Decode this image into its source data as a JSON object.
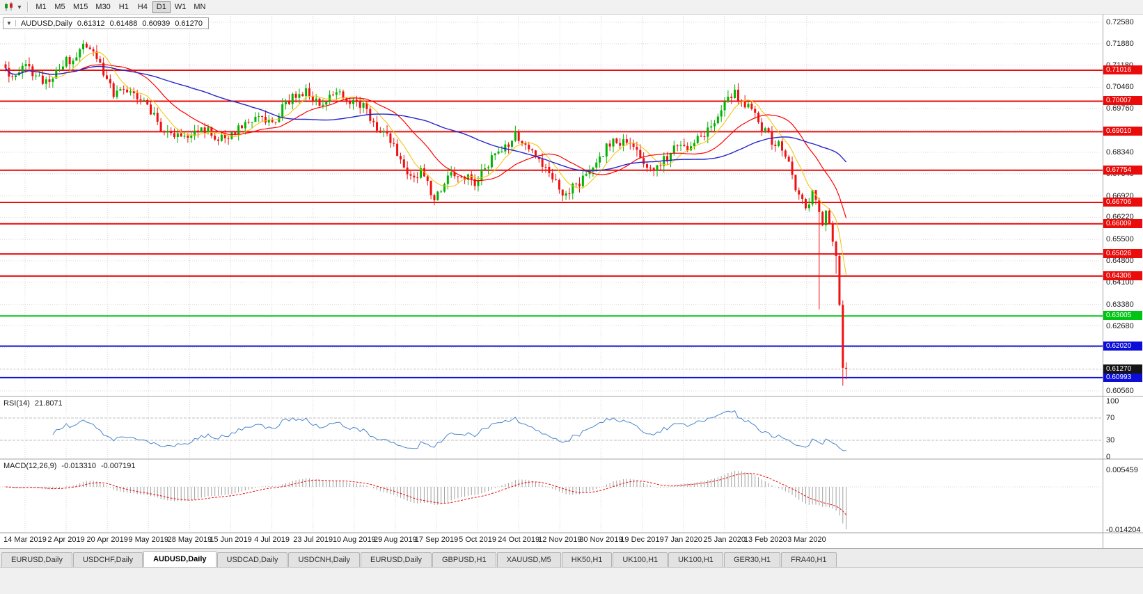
{
  "toolbar": {
    "chart_type_icon": "candlestick-chart-icon",
    "dropdown_glyph": "▼",
    "timeframes": [
      "M1",
      "M5",
      "M15",
      "M30",
      "H1",
      "H4",
      "D1",
      "W1",
      "MN"
    ],
    "active_timeframe": "D1"
  },
  "chart_header": {
    "collapse_glyph": "▼",
    "symbol": "AUDUSD,Daily",
    "open": "0.61312",
    "high": "0.61488",
    "low": "0.60939",
    "close": "0.61270"
  },
  "chart_data": {
    "type": "candlestick",
    "symbol": "AUDUSD",
    "timeframe": "Daily",
    "bars": 250,
    "current_bar": {
      "open": 0.61312,
      "high": 0.61488,
      "low": 0.60939,
      "close": 0.6127
    },
    "current_price": 0.6127,
    "y_axis": {
      "ticks": [
        "0.72580",
        "0.71880",
        "0.71180",
        "0.70460",
        "0.69760",
        "0.69060",
        "0.68340",
        "0.67640",
        "0.66920",
        "0.66220",
        "0.65500",
        "0.64800",
        "0.64100",
        "0.63380",
        "0.62680",
        "0.61980",
        "0.61270",
        "0.60560"
      ],
      "top_price": 0.72852,
      "bottom_price": 0.6038
    },
    "x_labels": [
      "14 Mar 2019",
      "2 Apr 2019",
      "20 Apr 2019",
      "9 May 2019",
      "28 May 2019",
      "15 Jun 2019",
      "4 Jul 2019",
      "23 Jul 2019",
      "10 Aug 2019",
      "29 Aug 2019",
      "17 Sep 2019",
      "5 Oct 2019",
      "24 Oct 2019",
      "12 Nov 2019",
      "30 Nov 2019",
      "19 Dec 2019",
      "7 Jan 2020",
      "25 Jan 2020",
      "13 Feb 2020",
      "3 Mar 2020"
    ],
    "levels": [
      {
        "price": 0.71016,
        "label": "0.71016",
        "color": "#ea0b0b"
      },
      {
        "price": 0.70007,
        "label": "0.70007",
        "color": "#ea0b0b"
      },
      {
        "price": 0.6901,
        "label": "0.69010",
        "color": "#ea0b0b"
      },
      {
        "price": 0.67754,
        "label": "0.67754",
        "color": "#ea0b0b"
      },
      {
        "price": 0.66706,
        "label": "0.66706",
        "color": "#ea0b0b"
      },
      {
        "price": 0.66009,
        "label": "0.66009",
        "color": "#ea0b0b"
      },
      {
        "price": 0.65026,
        "label": "0.65026",
        "color": "#ea0b0b"
      },
      {
        "price": 0.64306,
        "label": "0.64306",
        "color": "#ea0b0b"
      },
      {
        "price": 0.63005,
        "label": "0.63005",
        "color": "#00c414"
      },
      {
        "price": 0.6202,
        "label": "0.62020",
        "color": "#0d0dd8"
      },
      {
        "price": 0.60993,
        "label": "0.60993",
        "color": "#0d0dd8"
      }
    ],
    "price_path_anchors": [
      [
        0,
        0.7092
      ],
      [
        6,
        0.7106
      ],
      [
        12,
        0.7066
      ],
      [
        18,
        0.7128
      ],
      [
        24,
        0.718
      ],
      [
        27,
        0.7148
      ],
      [
        32,
        0.7018
      ],
      [
        36,
        0.7046
      ],
      [
        41,
        0.6996
      ],
      [
        47,
        0.6902
      ],
      [
        53,
        0.6874
      ],
      [
        58,
        0.6926
      ],
      [
        63,
        0.687
      ],
      [
        69,
        0.6912
      ],
      [
        74,
        0.695
      ],
      [
        79,
        0.6938
      ],
      [
        85,
        0.701
      ],
      [
        89,
        0.704
      ],
      [
        93,
        0.6978
      ],
      [
        97,
        0.702
      ],
      [
        101,
        0.7012
      ],
      [
        106,
        0.6984
      ],
      [
        110,
        0.6922
      ],
      [
        114,
        0.6868
      ],
      [
        118,
        0.6794
      ],
      [
        121,
        0.675
      ],
      [
        124,
        0.6772
      ],
      [
        127,
        0.668
      ],
      [
        131,
        0.6756
      ],
      [
        135,
        0.6772
      ],
      [
        139,
        0.6728
      ],
      [
        143,
        0.6796
      ],
      [
        147,
        0.685
      ],
      [
        151,
        0.6886
      ],
      [
        155,
        0.686
      ],
      [
        159,
        0.6798
      ],
      [
        163,
        0.6744
      ],
      [
        166,
        0.6694
      ],
      [
        169,
        0.6728
      ],
      [
        173,
        0.678
      ],
      [
        177,
        0.6836
      ],
      [
        181,
        0.6876
      ],
      [
        185,
        0.6856
      ],
      [
        189,
        0.6802
      ],
      [
        193,
        0.6778
      ],
      [
        197,
        0.6836
      ],
      [
        201,
        0.685
      ],
      [
        205,
        0.6876
      ],
      [
        209,
        0.6926
      ],
      [
        213,
        0.699
      ],
      [
        216,
        0.703
      ],
      [
        219,
        0.6996
      ],
      [
        222,
        0.6946
      ],
      [
        225,
        0.6896
      ],
      [
        228,
        0.6864
      ],
      [
        231,
        0.6832
      ],
      [
        233,
        0.6762
      ],
      [
        235,
        0.6688
      ],
      [
        237,
        0.666
      ],
      [
        239,
        0.67
      ],
      [
        240,
        0.6662
      ],
      [
        241,
        0.663
      ],
      [
        242,
        0.6592
      ],
      [
        243,
        0.6634
      ],
      [
        244,
        0.6586
      ],
      [
        245,
        0.655
      ],
      [
        246,
        0.648
      ],
      [
        247,
        0.634
      ],
      [
        248,
        0.6131
      ],
      [
        249,
        0.6127
      ]
    ],
    "low_wick_overrides": [
      [
        241,
        0.6322
      ],
      [
        246,
        0.6438
      ],
      [
        248,
        0.6073
      ]
    ],
    "colors": {
      "up": "#00b400",
      "down": "#ef1010",
      "ma_fast": "#f2c200",
      "ma_mid": "#ff0000",
      "ma_slow": "#2424cc",
      "grid": "#d8d8d8",
      "current_badge": "#141414",
      "separator": "#a3a3a3"
    }
  },
  "rsi_panel": {
    "label": "RSI(14)",
    "value": "21.8071",
    "ticks": [
      "100",
      "70",
      "30",
      "0"
    ],
    "upper_level": 70,
    "lower_level": 30,
    "line_color": "#4a86c8"
  },
  "macd_panel": {
    "label": "MACD(12,26,9)",
    "main_value": "-0.013310",
    "signal_value": "-0.007191",
    "ticks": [
      "0.005459",
      "-0.014204"
    ],
    "histogram_color": "#a0a0a0",
    "signal_color": "#ea0b0b"
  },
  "tabs": {
    "items": [
      "EURUSD,Daily",
      "USDCHF,Daily",
      "AUDUSD,Daily",
      "USDCAD,Daily",
      "USDCNH,Daily",
      "EURUSD,Daily",
      "GBPUSD,H1",
      "XAUUSD,M5",
      "HK50,H1",
      "UK100,H1",
      "UK100,H1",
      "GER30,H1",
      "FRA40,H1"
    ],
    "active_index": 2
  }
}
